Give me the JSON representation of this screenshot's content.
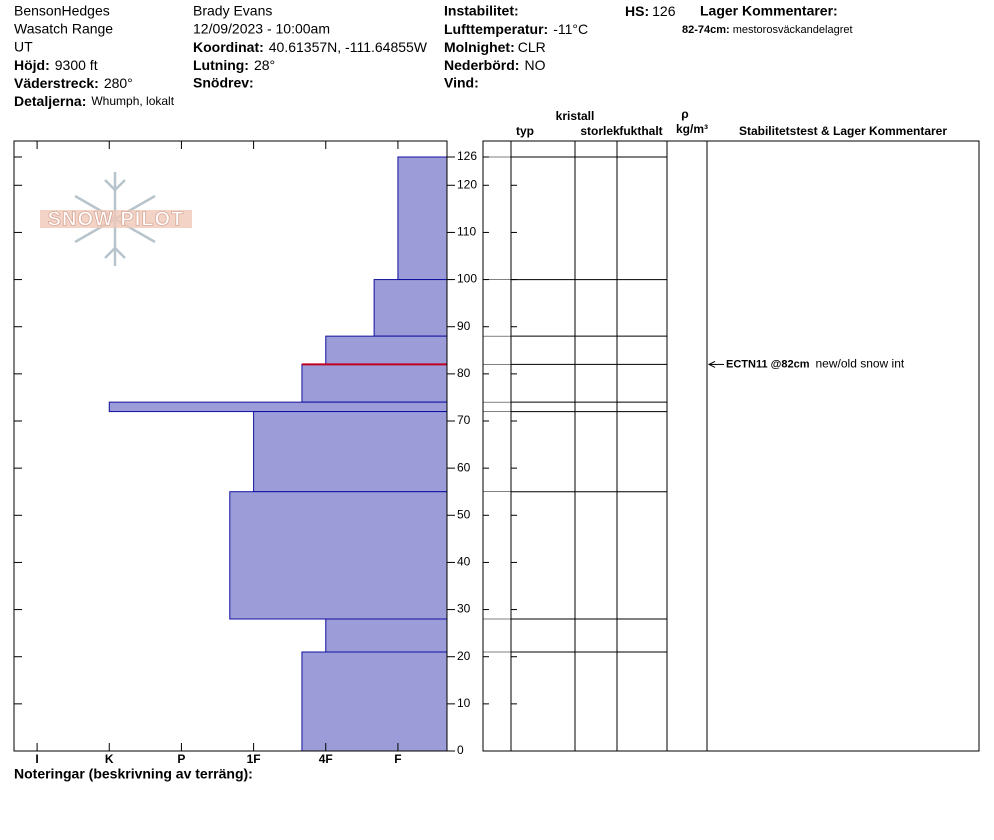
{
  "header": {
    "site": "BensonHedges",
    "range": "Wasatch Range",
    "state": "UT",
    "elevation": {
      "label": "Höjd:",
      "value": "9300 ft"
    },
    "aspect": {
      "label": "Väderstreck:",
      "value": "280°"
    },
    "details": {
      "label": "Detaljerna:",
      "value": "Whumph, lokalt"
    },
    "observer": "Brady Evans",
    "datetime": "12/09/2023 - 10:00am",
    "coordinates": {
      "label": "Koordinat:",
      "value": "40.61357N, -111.64855W"
    },
    "slope": {
      "label": "Lutning:",
      "value": "28°"
    },
    "wind_loading": {
      "label": "Snödrev:"
    },
    "instability": {
      "label": "Instabilitet:"
    },
    "air_temp": {
      "label": "Lufttemperatur:",
      "value": "-11°C"
    },
    "sky": {
      "label": "Molnighet:",
      "value": "CLR"
    },
    "precip": {
      "label": "Nederbörd:",
      "value": "NO"
    },
    "wind": {
      "label": "Vind:"
    },
    "hs": {
      "label": "HS:",
      "value": "126"
    },
    "layer_comments": {
      "title": "Lager Kommentarer:",
      "items": [
        {
          "range": "82-74cm:",
          "text": "mestorosväckandelagret"
        }
      ]
    }
  },
  "logo": "SNOW PILOT",
  "chart_data": {
    "type": "snow_profile",
    "layers": [
      {
        "top": 126,
        "bottom": 100,
        "hardness": 1
      },
      {
        "top": 100,
        "bottom": 88,
        "hardness": 1.33
      },
      {
        "top": 88,
        "bottom": 82,
        "hardness": 2
      },
      {
        "top": 82,
        "bottom": 74,
        "hardness": 2.33
      },
      {
        "top": 74,
        "bottom": 72,
        "hardness": 5
      },
      {
        "top": 72,
        "bottom": 55,
        "hardness": 3
      },
      {
        "top": 55,
        "bottom": 28,
        "hardness": 3.33
      },
      {
        "top": 28,
        "bottom": 21,
        "hardness": 2
      },
      {
        "top": 21,
        "bottom": 0,
        "hardness": 2.33
      }
    ],
    "color": "#9c9cd8",
    "edge_color": "#1010a0",
    "critical_boundary": 82,
    "critical_color": "#c00020",
    "ylim": [
      0,
      126
    ],
    "yticks": [
      0,
      10,
      20,
      30,
      40,
      50,
      60,
      70,
      80,
      90,
      100,
      110,
      120,
      126
    ],
    "xlim": [
      6.32,
      0.32
    ],
    "xticks": [
      {
        "value": 6,
        "label": "I"
      },
      {
        "value": 5,
        "label": "K"
      },
      {
        "value": 4,
        "label": "P"
      },
      {
        "value": 3,
        "label": "1F"
      },
      {
        "value": 2,
        "label": "4F"
      },
      {
        "value": 1,
        "label": "F"
      }
    ],
    "columns": [
      "typ",
      "kristall",
      "storlek",
      "fukthalt",
      "ρ",
      "kg/m³",
      "Stabilitetstest & Lager Kommentarer"
    ],
    "tests": [
      {
        "height": 82,
        "result": "ECTN11 @82cm",
        "comment": "new/old snow int"
      }
    ],
    "footer": "Noteringar (beskrivning av terräng):"
  }
}
